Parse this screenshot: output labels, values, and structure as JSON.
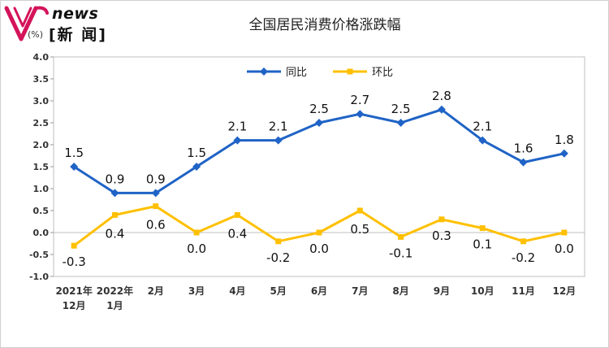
{
  "logo": {
    "en": "news",
    "cn": "[新 闻]",
    "brand_color": "#d4145a"
  },
  "chart_data": {
    "type": "line",
    "title": "全国居民消费价格涨跌幅",
    "unit_label": "(%)",
    "categories": [
      [
        "2021年",
        "12月"
      ],
      [
        "2022年",
        "1月"
      ],
      [
        "2月"
      ],
      [
        "3月"
      ],
      [
        "4月"
      ],
      [
        "5月"
      ],
      [
        "6月"
      ],
      [
        "7月"
      ],
      [
        "8月"
      ],
      [
        "9月"
      ],
      [
        "10月"
      ],
      [
        "11月"
      ],
      [
        "12月"
      ]
    ],
    "ylim": [
      -1.0,
      4.0
    ],
    "yticks": [
      "4.0",
      "3.5",
      "3.0",
      "2.5",
      "2.0",
      "1.5",
      "1.0",
      "0.5",
      "0.0",
      "-0.5",
      "-1.0"
    ],
    "legend": "top-center",
    "series": [
      {
        "name": "同比",
        "color": "#1f63c6",
        "marker": "diamond",
        "values": [
          1.5,
          0.9,
          0.9,
          1.5,
          2.1,
          2.1,
          2.5,
          2.7,
          2.5,
          2.8,
          2.1,
          1.6,
          1.8
        ],
        "labels": [
          "1.5",
          "0.9",
          "0.9",
          "1.5",
          "2.1",
          "2.1",
          "2.5",
          "2.7",
          "2.5",
          "2.8",
          "2.1",
          "1.6",
          "1.8"
        ]
      },
      {
        "name": "环比",
        "color": "#ffc000",
        "marker": "square",
        "values": [
          -0.3,
          0.4,
          0.6,
          0.0,
          0.4,
          -0.2,
          0.0,
          0.5,
          -0.1,
          0.3,
          0.1,
          -0.2,
          0.0
        ],
        "labels": [
          "-0.3",
          "0.4",
          "0.6",
          "0.0",
          "0.4",
          "-0.2",
          "0.0",
          "0.5",
          "-0.1",
          "0.3",
          "0.1",
          "-0.2",
          "0.0"
        ]
      }
    ]
  }
}
